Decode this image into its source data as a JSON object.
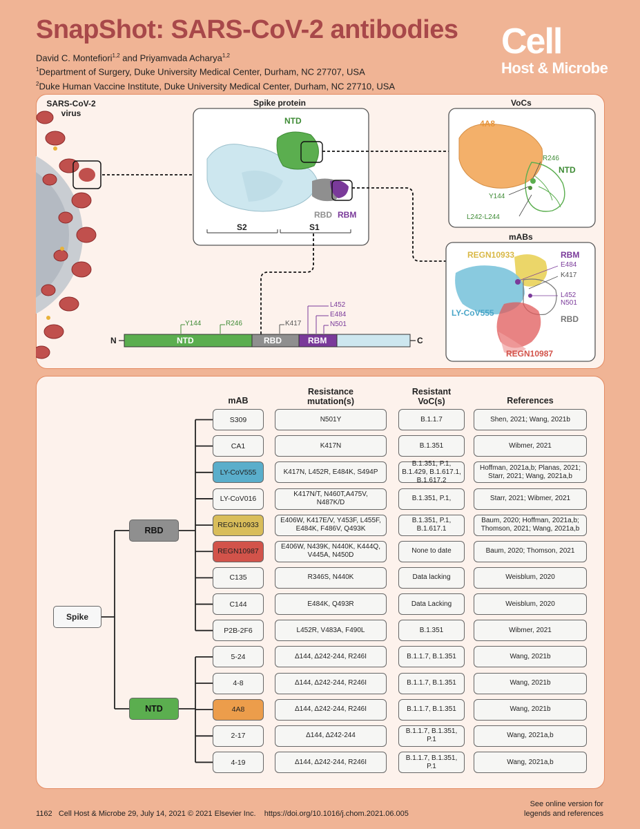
{
  "header": {
    "title": "SnapShot: SARS-CoV-2 antibodies",
    "authors_a": "David C. Montefiori",
    "authors_a_sup": "1,2",
    "authors_b": " and Priyamvada Acharya",
    "authors_b_sup": "1,2",
    "aff1_sup": "1",
    "aff1": "Department of Surgery, Duke University Medical Center, Durham, NC 27707, USA",
    "aff2_sup": "2",
    "aff2": "Duke Human Vaccine Institute, Duke University Medical Center, Durham, NC 27710, USA",
    "logo_big": "Cell",
    "logo_small": "Host & Microbe"
  },
  "figure": {
    "virus_label": "SARS-CoV-2\nvirus",
    "spike_title": "Spike protein",
    "ntd": "NTD",
    "rbd": "RBD",
    "rbm": "RBM",
    "s2": "S2",
    "s1": "S1",
    "vocs_title": "VoCs",
    "voc_4a8": "4A8",
    "voc_r246": "R246",
    "voc_ntd": "NTD",
    "voc_y144": "Y144",
    "voc_l242": "L242-L244",
    "mabs_title": "mABs",
    "m_regn10933": "REGN10933",
    "m_rbm": "RBM",
    "m_e484": "E484",
    "m_k417": "K417",
    "m_l452": "L452",
    "m_n501": "N501",
    "m_lycov555": "LY-CoV555",
    "m_rbd": "RBD",
    "m_regn10987": "REGN10987",
    "bar_n": "N",
    "bar_c": "C",
    "bar_ntd": "NTD",
    "bar_rbd": "RBD",
    "bar_rbm": "RBM",
    "bar_y144": "Y144",
    "bar_r246": "R246",
    "bar_k417": "K417",
    "bar_l452": "L452",
    "bar_e484": "E484",
    "bar_n501": "N501"
  },
  "tree": {
    "root": "Spike",
    "rbd": "RBD",
    "ntd": "NTD",
    "headers": {
      "mab": "mAB",
      "mut": "Resistance\nmutation(s)",
      "voc": "Resistant\nVoC(s)",
      "ref": "References"
    },
    "rows": [
      {
        "mab": "S309",
        "mut": "N501Y",
        "voc": "B.1.1.7",
        "ref": "Shen, 2021; Wang, 2021b",
        "color": ""
      },
      {
        "mab": "CA1",
        "mut": "K417N",
        "voc": "B.1.351",
        "ref": "Wibmer, 2021",
        "color": ""
      },
      {
        "mab": "LY-CoV555",
        "mut": "K417N, L452R, E484K, S494P",
        "voc": "B.1.351, P.1,\nB.1.429, B.1.617.1,\nB.1.617.2",
        "ref": "Hoffman, 2021a,b; Planas, 2021;\nStarr, 2021; Wang, 2021a,b",
        "color": "#5aaecb"
      },
      {
        "mab": "LY-CoV016",
        "mut": "K417N/T, N460T,A475V,\nN487K/D",
        "voc": "B.1.351, P.1,",
        "ref": "Starr, 2021; Wibmer, 2021",
        "color": ""
      },
      {
        "mab": "REGN10933",
        "mut": "E406W, K417E/V, Y453F, L455F,\nE484K, F486V, Q493K",
        "voc": "B.1.351, P.1,\nB.1.617.1",
        "ref": "Baum, 2020; Hoffman, 2021a,b;\nThomson, 2021; Wang, 2021a,b",
        "color": "#d9bd5a"
      },
      {
        "mab": "REGN10987",
        "mut": "E406W, N439K, N440K, K444Q,\nV445A, N450D",
        "voc": "None to date",
        "ref": "Baum, 2020; Thomson, 2021",
        "color": "#d2534a"
      },
      {
        "mab": "C135",
        "mut": "R346S, N440K",
        "voc": "Data lacking",
        "ref": "Weisblum, 2020",
        "color": ""
      },
      {
        "mab": "C144",
        "mut": "E484K, Q493R",
        "voc": "Data Lacking",
        "ref": "Weisblum, 2020",
        "color": ""
      },
      {
        "mab": "P2B-2F6",
        "mut": "L452R, V483A, F490L",
        "voc": "B.1.351",
        "ref": "Wibmer, 2021",
        "color": ""
      },
      {
        "mab": "5-24",
        "mut": "Δ144, Δ242-244, R246I",
        "voc": "B.1.1.7, B.1.351",
        "ref": "Wang, 2021b",
        "color": ""
      },
      {
        "mab": "4-8",
        "mut": "Δ144, Δ242-244, R246I",
        "voc": "B.1.1.7, B.1.351",
        "ref": "Wang, 2021b",
        "color": ""
      },
      {
        "mab": "4A8",
        "mut": "Δ144, Δ242-244, R246I",
        "voc": "B.1.1.7, B.1.351",
        "ref": "Wang, 2021b",
        "color": "#ec9d4b"
      },
      {
        "mab": "2-17",
        "mut": "Δ144, Δ242-244",
        "voc": "B.1.1.7, B.1.351,\nP.1",
        "ref": "Wang, 2021a,b",
        "color": ""
      },
      {
        "mab": "4-19",
        "mut": "Δ144, Δ242-244, R246I",
        "voc": "B.1.1.7, B.1.351,\nP.1",
        "ref": "Wang, 2021a,b",
        "color": ""
      }
    ]
  },
  "footer": {
    "left": "1162   Cell Host & Microbe 29, July 14, 2021 © 2021 Elsevier Inc.    https://doi.org/10.1016/j.chom.2021.06.005",
    "right": "See online version for\nlegends and references"
  },
  "colors": {
    "title": "#a8484a",
    "ntd": "#5bae4f",
    "rbd": "#8f8f8f",
    "rbm": "#7a3a9a",
    "s2": "#cde7ef"
  }
}
